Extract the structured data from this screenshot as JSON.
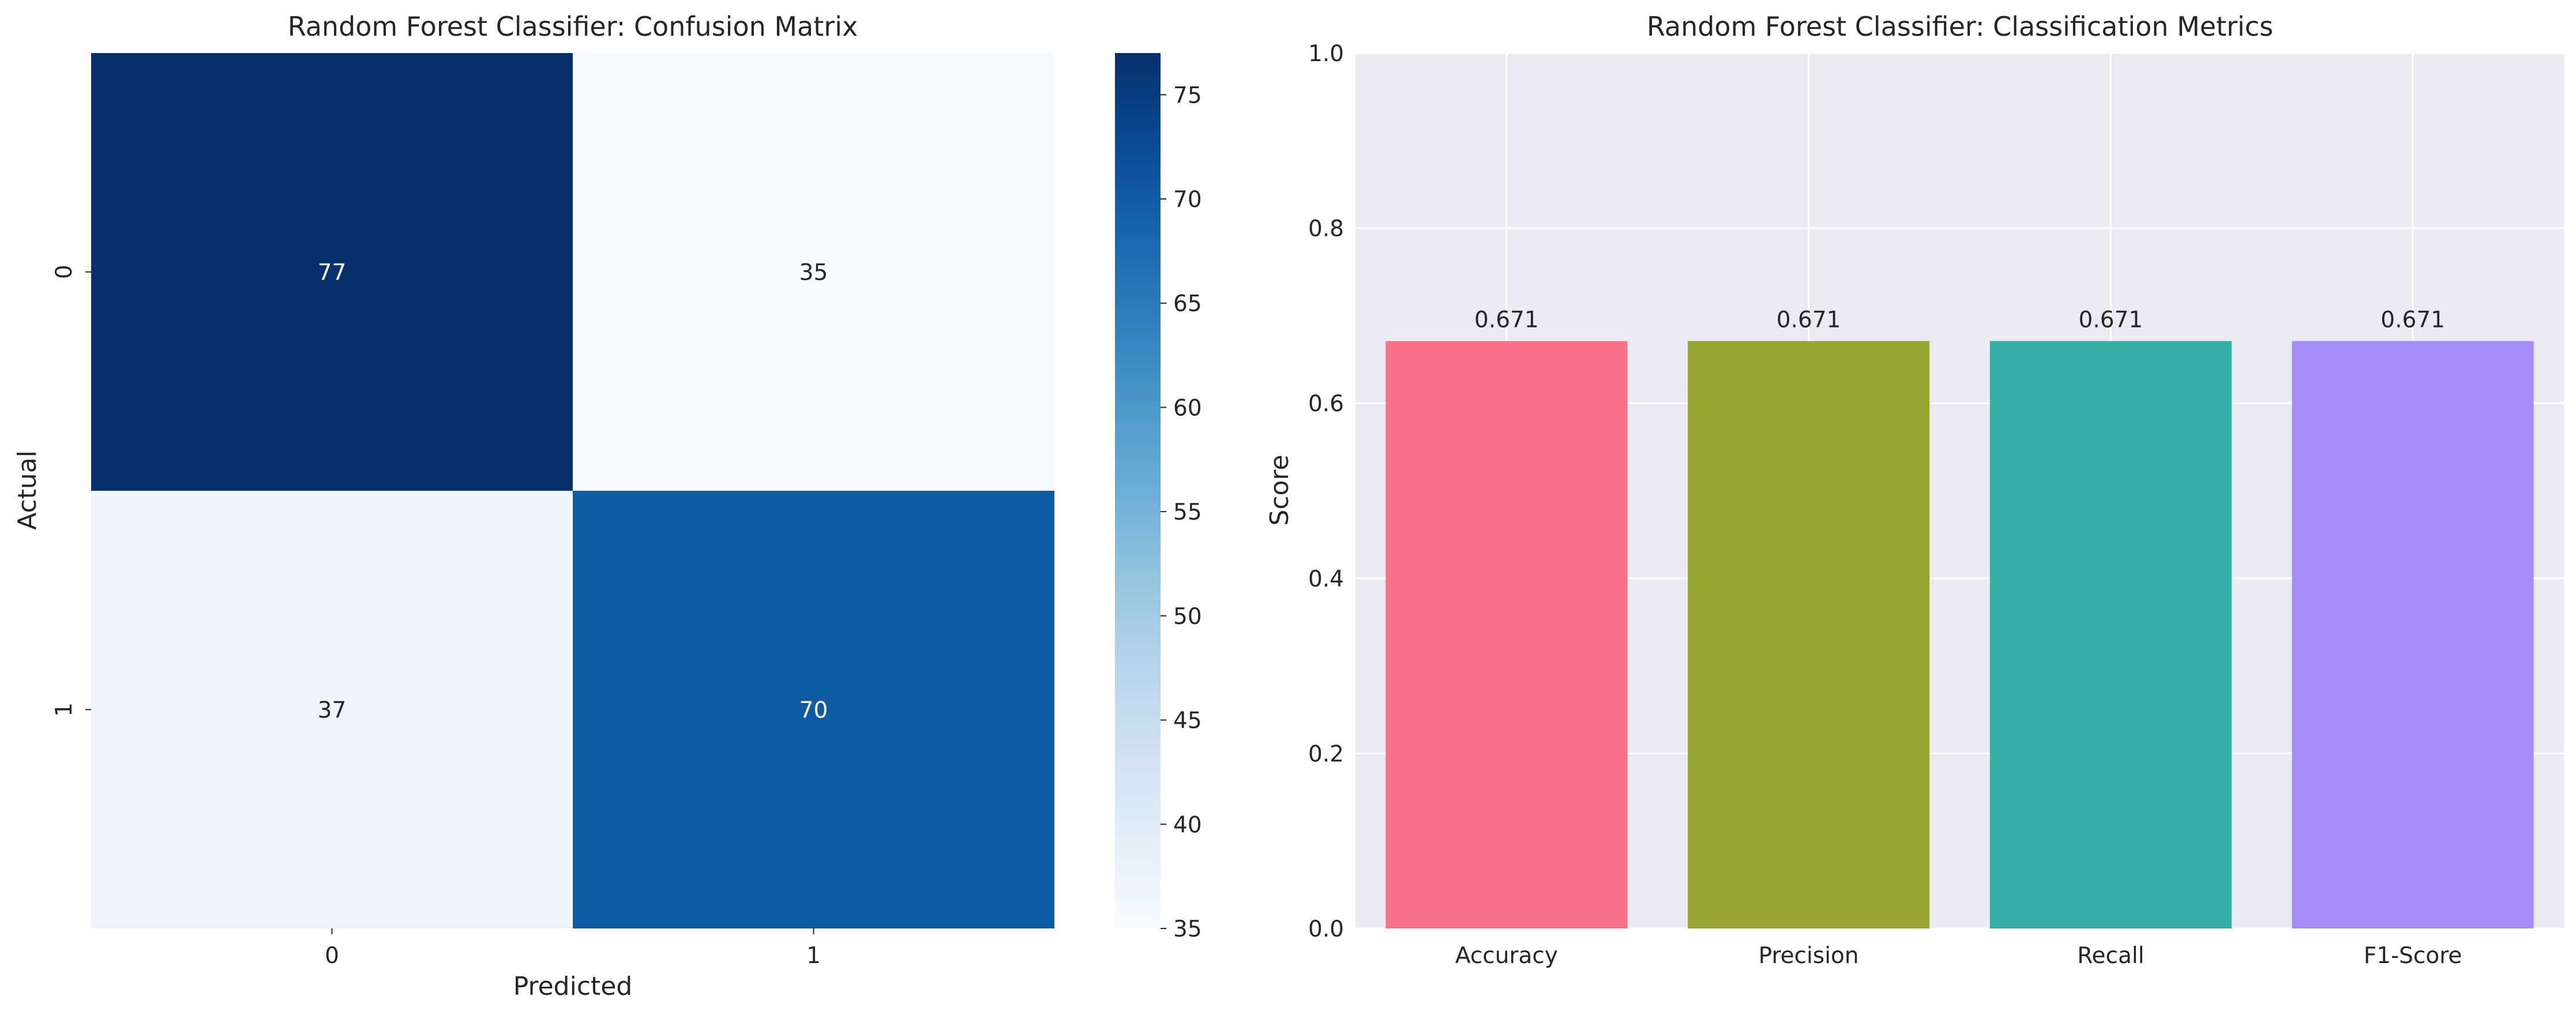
{
  "chart_data": [
    {
      "type": "heatmap",
      "title": "Random Forest Classifier: Confusion Matrix",
      "xlabel": "Predicted",
      "ylabel": "Actual",
      "x_categories": [
        "0",
        "1"
      ],
      "y_categories": [
        "0",
        "1"
      ],
      "values": [
        [
          77,
          35
        ],
        [
          37,
          70
        ]
      ],
      "colormap": "Blues",
      "colorbar": {
        "range": [
          35,
          77
        ],
        "ticks": [
          35,
          40,
          45,
          50,
          55,
          60,
          65,
          70,
          75
        ]
      },
      "annotations": true
    },
    {
      "type": "bar",
      "title": "Random Forest Classifier: Classification Metrics",
      "xlabel": "",
      "ylabel": "Score",
      "categories": [
        "Accuracy",
        "Precision",
        "Recall",
        "F1-Score"
      ],
      "values": [
        0.671,
        0.671,
        0.671,
        0.671
      ],
      "value_labels": [
        "0.671",
        "0.671",
        "0.671",
        "0.671"
      ],
      "colors": [
        "#f77189",
        "#97a431",
        "#36ada4",
        "#a48cf4"
      ],
      "ylim": [
        0,
        1
      ],
      "yticks": [
        0.0,
        0.2,
        0.4,
        0.6,
        0.8,
        1.0
      ],
      "ytick_labels": [
        "0.0",
        "0.2",
        "0.4",
        "0.6",
        "0.8",
        "1.0"
      ],
      "grid": true,
      "background": "#eaeaf2"
    }
  ]
}
